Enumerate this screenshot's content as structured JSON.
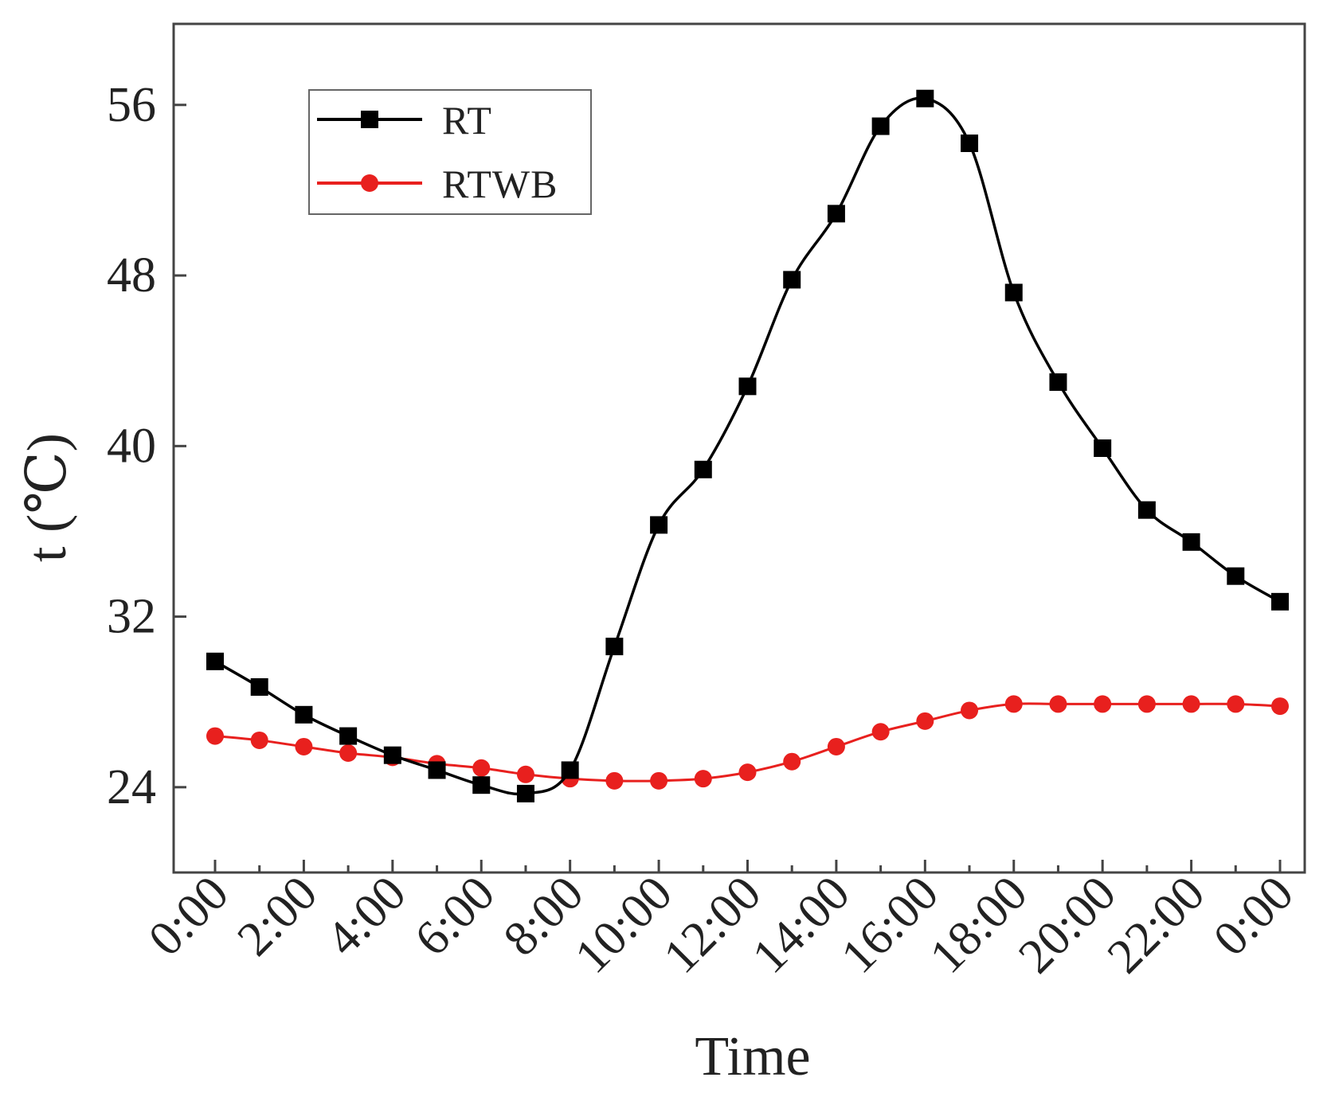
{
  "chart_data": {
    "type": "line",
    "xlabel": "Time",
    "ylabel": "t (℃)",
    "ylim": [
      20,
      59.8
    ],
    "yticks": [
      24,
      32,
      40,
      48,
      56
    ],
    "x_tick_labels": [
      "0:00",
      "2:00",
      "4:00",
      "6:00",
      "8:00",
      "10:00",
      "12:00",
      "14:00",
      "16:00",
      "18:00",
      "20:00",
      "22:00",
      "0:00"
    ],
    "x_hours_range": [
      0,
      24
    ],
    "grid": false,
    "legend_position": "top-left",
    "series": [
      {
        "name": "RT",
        "color": "#000000",
        "marker": "square",
        "x": [
          0,
          1,
          2,
          3,
          4,
          5,
          6,
          7,
          8,
          9,
          10,
          11,
          12,
          13,
          14,
          15,
          16,
          17,
          18,
          19,
          20,
          21,
          22,
          23,
          24
        ],
        "y": [
          29.9,
          28.7,
          27.4,
          26.4,
          25.5,
          24.8,
          24.1,
          23.7,
          24.8,
          30.6,
          36.3,
          38.9,
          42.8,
          47.8,
          50.9,
          55.0,
          56.3,
          54.2,
          47.2,
          43.0,
          39.9,
          37.0,
          35.5,
          33.9,
          32.7
        ]
      },
      {
        "name": "RTWB",
        "color": "#e8201e",
        "marker": "circle",
        "x": [
          0,
          1,
          2,
          3,
          4,
          5,
          6,
          7,
          8,
          9,
          10,
          11,
          12,
          13,
          14,
          15,
          16,
          17,
          18,
          19,
          20,
          21,
          22,
          23,
          24
        ],
        "y": [
          26.4,
          26.2,
          25.9,
          25.6,
          25.4,
          25.1,
          24.9,
          24.6,
          24.4,
          24.3,
          24.3,
          24.4,
          24.7,
          25.2,
          25.9,
          26.6,
          27.1,
          27.6,
          27.9,
          27.9,
          27.9,
          27.9,
          27.9,
          27.9,
          27.8
        ]
      }
    ]
  }
}
